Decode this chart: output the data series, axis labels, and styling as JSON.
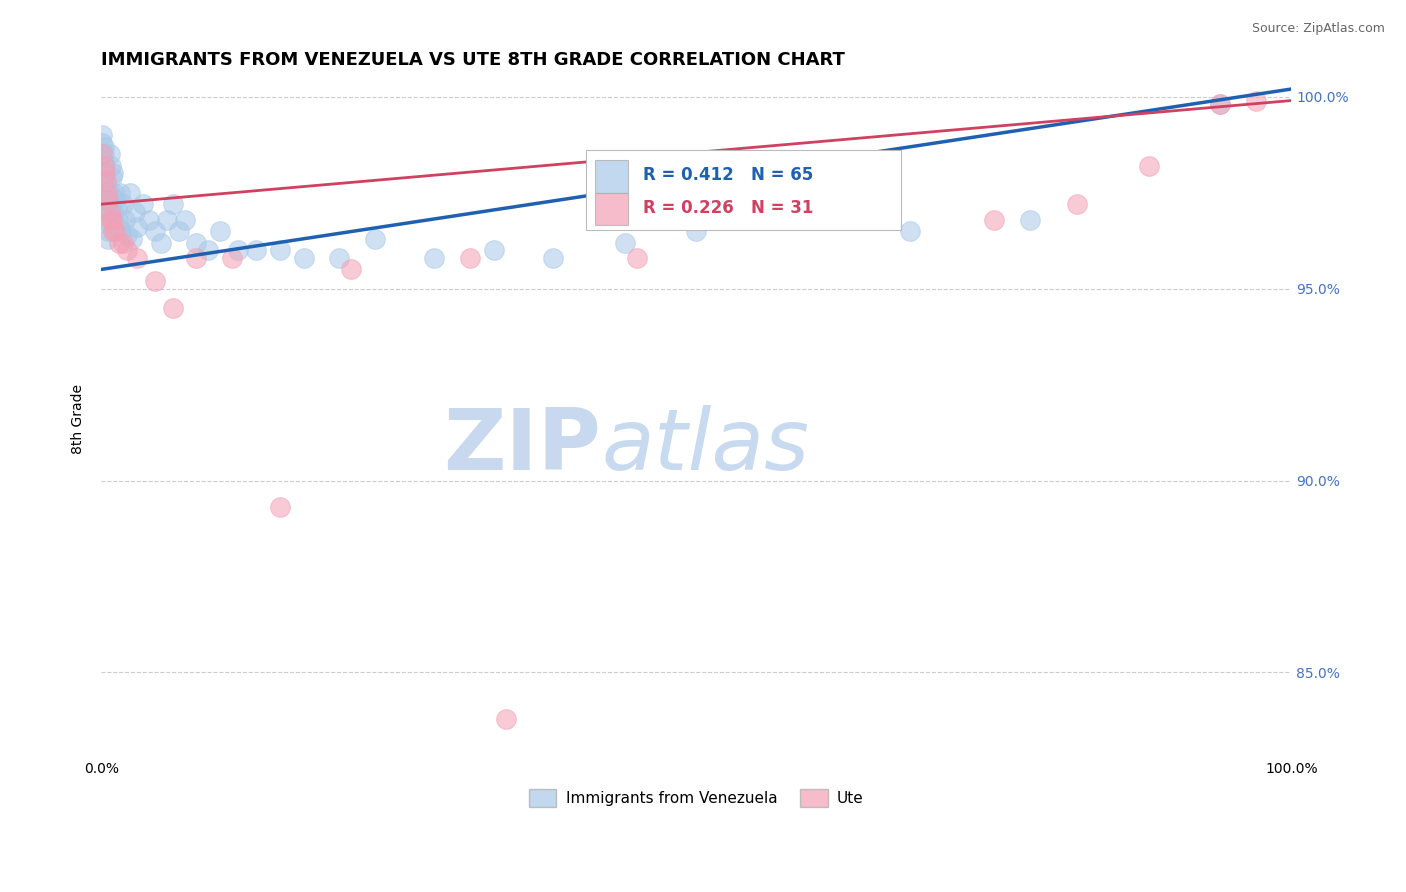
{
  "title": "IMMIGRANTS FROM VENEZUELA VS UTE 8TH GRADE CORRELATION CHART",
  "source_text": "Source: ZipAtlas.com",
  "ylabel": "8th Grade",
  "watermark_zip": "ZIP",
  "watermark_atlas": "atlas",
  "legend_blue_r": "R = 0.412",
  "legend_blue_n": "N = 65",
  "legend_pink_r": "R = 0.226",
  "legend_pink_n": "N = 31",
  "blue_color": "#a8c8e8",
  "pink_color": "#f4a0b5",
  "trendline_blue": "#2060b0",
  "trendline_pink": "#d04060",
  "xlim": [
    0.0,
    1.0
  ],
  "ylim": [
    0.828,
    1.004
  ],
  "yticks": [
    0.85,
    0.9,
    0.95,
    1.0
  ],
  "ytick_labels": [
    "85.0%",
    "90.0%",
    "95.0%",
    "100.0%"
  ],
  "xtick_labels": [
    "0.0%",
    "100.0%"
  ],
  "blue_x": [
    0.001,
    0.001,
    0.002,
    0.002,
    0.002,
    0.003,
    0.003,
    0.003,
    0.004,
    0.004,
    0.004,
    0.005,
    0.005,
    0.005,
    0.006,
    0.006,
    0.006,
    0.007,
    0.007,
    0.008,
    0.008,
    0.009,
    0.009,
    0.01,
    0.01,
    0.011,
    0.012,
    0.013,
    0.014,
    0.015,
    0.016,
    0.017,
    0.018,
    0.02,
    0.022,
    0.024,
    0.026,
    0.028,
    0.03,
    0.035,
    0.04,
    0.045,
    0.05,
    0.055,
    0.06,
    0.065,
    0.07,
    0.08,
    0.09,
    0.1,
    0.115,
    0.13,
    0.15,
    0.17,
    0.2,
    0.23,
    0.28,
    0.33,
    0.38,
    0.44,
    0.5,
    0.58,
    0.68,
    0.78,
    0.94
  ],
  "blue_y": [
    0.99,
    0.988,
    0.987,
    0.985,
    0.983,
    0.982,
    0.98,
    0.978,
    0.976,
    0.975,
    0.973,
    0.972,
    0.97,
    0.968,
    0.967,
    0.965,
    0.963,
    0.985,
    0.975,
    0.982,
    0.972,
    0.979,
    0.969,
    0.98,
    0.97,
    0.975,
    0.973,
    0.971,
    0.968,
    0.966,
    0.975,
    0.965,
    0.972,
    0.968,
    0.964,
    0.975,
    0.963,
    0.97,
    0.966,
    0.972,
    0.968,
    0.965,
    0.962,
    0.968,
    0.972,
    0.965,
    0.968,
    0.962,
    0.96,
    0.965,
    0.96,
    0.96,
    0.96,
    0.958,
    0.958,
    0.963,
    0.958,
    0.96,
    0.958,
    0.962,
    0.965,
    0.968,
    0.965,
    0.968,
    0.998
  ],
  "pink_x": [
    0.001,
    0.002,
    0.003,
    0.004,
    0.005,
    0.006,
    0.007,
    0.008,
    0.009,
    0.01,
    0.012,
    0.015,
    0.018,
    0.022,
    0.03,
    0.045,
    0.06,
    0.08,
    0.11,
    0.15,
    0.21,
    0.31,
    0.34,
    0.45,
    0.54,
    0.65,
    0.75,
    0.82,
    0.88,
    0.94,
    0.97
  ],
  "pink_y": [
    0.985,
    0.982,
    0.98,
    0.978,
    0.975,
    0.973,
    0.97,
    0.968,
    0.968,
    0.965,
    0.965,
    0.962,
    0.962,
    0.96,
    0.958,
    0.952,
    0.945,
    0.958,
    0.958,
    0.893,
    0.955,
    0.958,
    0.838,
    0.958,
    0.975,
    0.968,
    0.968,
    0.972,
    0.982,
    0.998,
    0.999
  ],
  "blue_trend_start_y": 0.955,
  "blue_trend_end_y": 1.002,
  "pink_trend_start_y": 0.972,
  "pink_trend_end_y": 0.999,
  "grid_color": "#cccccc",
  "bg_color": "#ffffff",
  "title_fontsize": 13,
  "label_fontsize": 10,
  "tick_fontsize": 10,
  "source_color": "#666666",
  "right_tick_color": "#4472c4",
  "legend_text_color_blue": "#2060b0",
  "legend_text_color_pink": "#d04060",
  "watermark_zip_color": "#c8d8ee",
  "watermark_atlas_color": "#c8daf0"
}
